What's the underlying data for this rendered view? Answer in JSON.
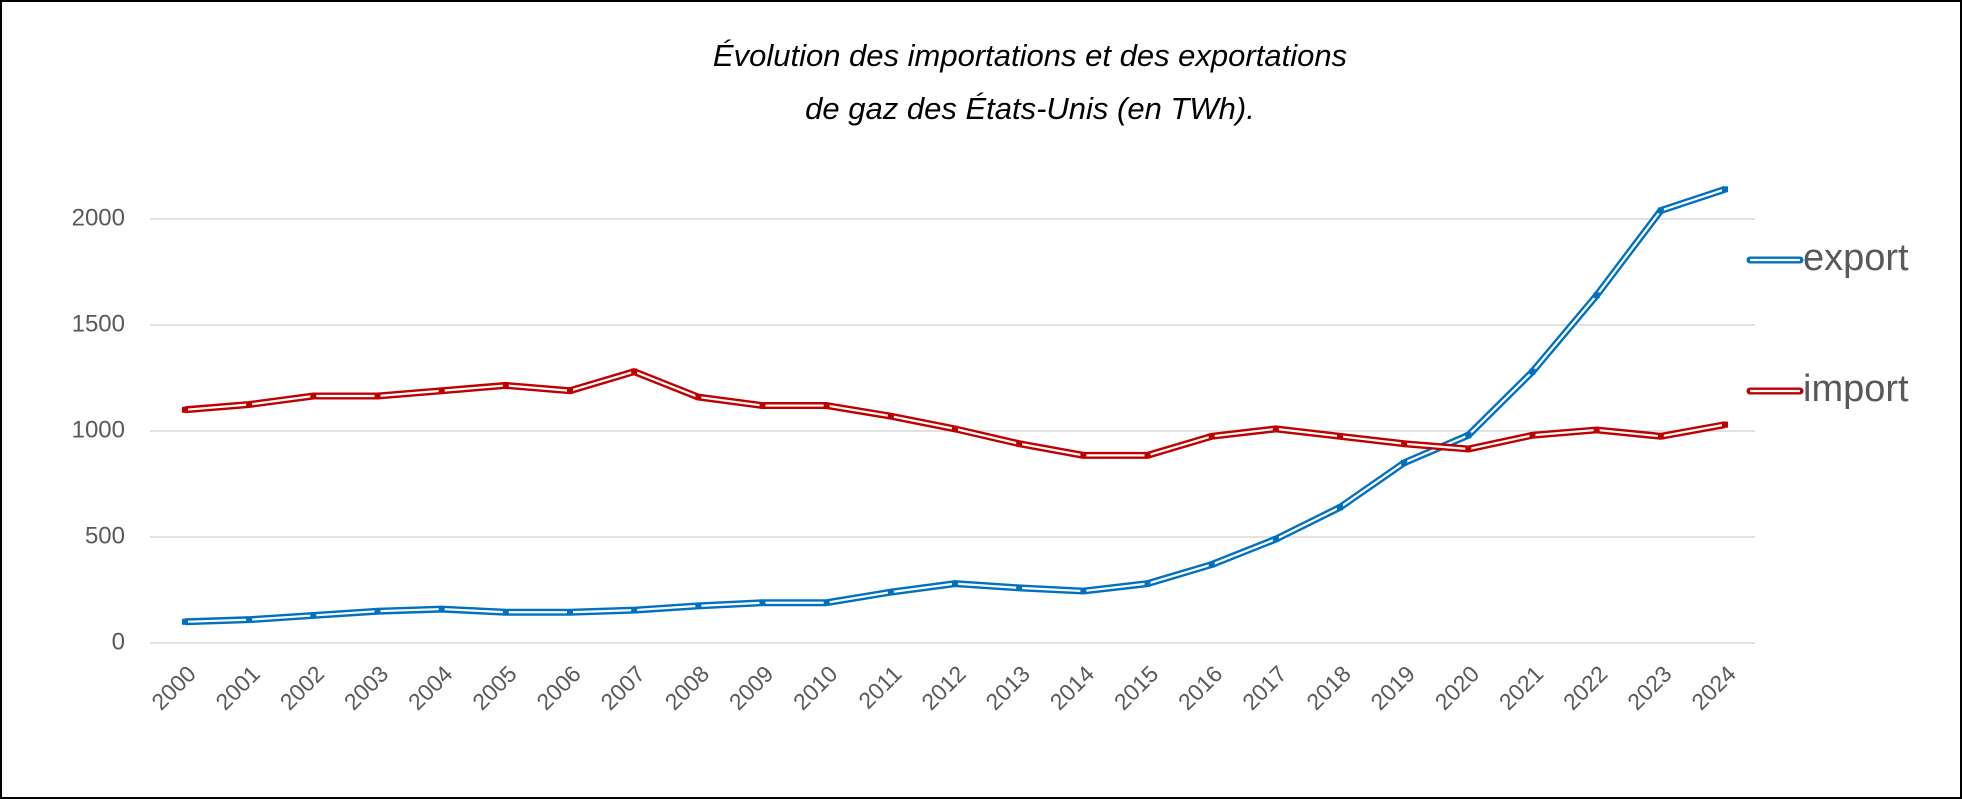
{
  "chart_data": {
    "type": "line",
    "title": [
      "Évolution des importations et des exportations",
      "de gaz des États-Unis (en TWh)."
    ],
    "categories": [
      "2000",
      "2001",
      "2002",
      "2003",
      "2004",
      "2005",
      "2006",
      "2007",
      "2008",
      "2009",
      "2010",
      "2011",
      "2012",
      "2013",
      "2014",
      "2015",
      "2016",
      "2017",
      "2018",
      "2019",
      "2020",
      "2021",
      "2022",
      "2023",
      "2024"
    ],
    "series": [
      {
        "name": "export",
        "color": "#0070c0",
        "values": [
          100,
          110,
          130,
          150,
          160,
          145,
          145,
          155,
          175,
          190,
          190,
          240,
          280,
          260,
          245,
          280,
          370,
          490,
          640,
          850,
          980,
          1280,
          1640,
          2040,
          2140
        ]
      },
      {
        "name": "import",
        "color": "#c00000",
        "values": [
          1100,
          1125,
          1165,
          1165,
          1190,
          1215,
          1190,
          1280,
          1160,
          1120,
          1120,
          1070,
          1010,
          940,
          885,
          885,
          975,
          1010,
          975,
          940,
          915,
          980,
          1005,
          975,
          1030
        ]
      }
    ],
    "ylim": [
      0,
      2000
    ],
    "yticks": [
      0,
      500,
      1000,
      1500,
      2000
    ],
    "grid": true,
    "legend": "right"
  }
}
